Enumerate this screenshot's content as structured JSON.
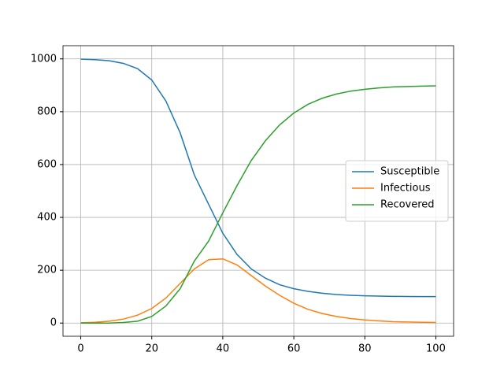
{
  "chart_data": {
    "type": "line",
    "x": [
      0,
      4,
      8,
      12,
      16,
      20,
      24,
      28,
      32,
      36,
      40,
      44,
      48,
      52,
      56,
      60,
      64,
      68,
      72,
      76,
      80,
      84,
      88,
      92,
      96,
      100
    ],
    "series": [
      {
        "name": "Susceptible",
        "color": "#1f77b4",
        "values": [
          999,
          997,
          993,
          983,
          963,
          920,
          840,
          720,
          560,
          450,
          340,
          260,
          205,
          170,
          145,
          130,
          120,
          113,
          108,
          105,
          103,
          102,
          101,
          100.5,
          100,
          100
        ]
      },
      {
        "name": "Infectious",
        "color": "#ff7f0e",
        "values": [
          1,
          3,
          7,
          15,
          30,
          55,
          95,
          150,
          205,
          240,
          243,
          220,
          180,
          140,
          105,
          75,
          52,
          36,
          25,
          17,
          12,
          8,
          5,
          4,
          3,
          2
        ]
      },
      {
        "name": "Recovered",
        "color": "#2ca02c",
        "values": [
          0,
          0,
          0,
          2,
          7,
          25,
          65,
          130,
          235,
          310,
          417,
          520,
          615,
          690,
          750,
          795,
          828,
          851,
          867,
          878,
          885,
          890,
          894,
          895.5,
          897,
          898
        ]
      }
    ],
    "xlim": [
      -5,
      105
    ],
    "ylim": [
      -50,
      1050
    ],
    "xticks": [
      0,
      20,
      40,
      60,
      80,
      100
    ],
    "yticks": [
      0,
      200,
      400,
      600,
      800,
      1000
    ],
    "grid": true,
    "legend": "right"
  }
}
